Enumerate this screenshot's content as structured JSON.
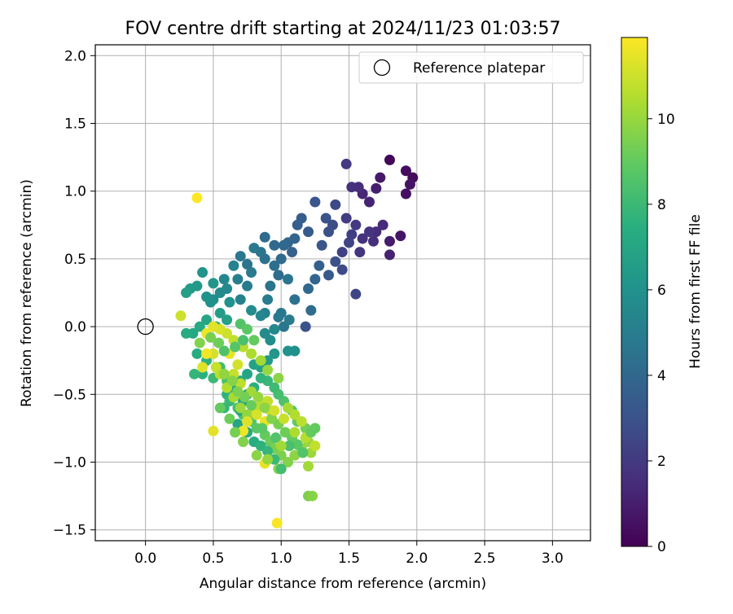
{
  "chart_data": {
    "type": "scatter",
    "title": "FOV centre drift starting at 2024/11/23 01:03:57",
    "xlabel": "Angular distance from reference (arcmin)",
    "ylabel": "Rotation from reference (arcmin)",
    "xlim": [
      -0.37,
      3.28
    ],
    "ylim": [
      -1.58,
      2.08
    ],
    "xticks": [
      "0.0",
      "0.5",
      "1.0",
      "1.5",
      "2.0",
      "2.5",
      "3.0"
    ],
    "yticks": [
      "−1.5",
      "−1.0",
      "−0.5",
      "0.0",
      "0.5",
      "1.0",
      "1.5",
      "2.0"
    ],
    "grid": true,
    "legend": {
      "placement": "top-right",
      "entries": [
        "Reference platepar"
      ]
    },
    "reference_point": {
      "x": 0.0,
      "y": 0.0,
      "label": "Reference platepar"
    },
    "colorbar": {
      "label": "Hours from first FF file",
      "range": [
        0,
        11.9
      ],
      "ticks": [
        "0",
        "2",
        "4",
        "6",
        "8",
        "10"
      ],
      "colormap": "viridis"
    },
    "points": [
      [
        1.8,
        1.23,
        0.2
      ],
      [
        1.92,
        1.15,
        0.4
      ],
      [
        1.97,
        1.1,
        0.3
      ],
      [
        1.95,
        1.05,
        0.6
      ],
      [
        1.92,
        0.98,
        0.5
      ],
      [
        1.73,
        1.1,
        0.8
      ],
      [
        1.7,
        1.02,
        1.0
      ],
      [
        1.65,
        0.92,
        1.2
      ],
      [
        1.6,
        0.98,
        1.3
      ],
      [
        1.57,
        1.03,
        1.5
      ],
      [
        1.52,
        1.03,
        1.7
      ],
      [
        1.48,
        1.2,
        2.0
      ],
      [
        1.8,
        0.63,
        0.9
      ],
      [
        1.88,
        0.67,
        0.7
      ],
      [
        1.8,
        0.53,
        1.1
      ],
      [
        1.75,
        0.75,
        1.4
      ],
      [
        1.7,
        0.7,
        1.5
      ],
      [
        1.68,
        0.63,
        1.6
      ],
      [
        1.65,
        0.7,
        1.8
      ],
      [
        1.6,
        0.65,
        1.7
      ],
      [
        1.58,
        0.55,
        1.9
      ],
      [
        1.55,
        0.75,
        2.0
      ],
      [
        1.52,
        0.68,
        2.2
      ],
      [
        1.5,
        0.62,
        2.4
      ],
      [
        1.48,
        0.8,
        2.1
      ],
      [
        1.45,
        0.55,
        2.3
      ],
      [
        1.4,
        0.9,
        2.6
      ],
      [
        1.38,
        0.75,
        2.8
      ],
      [
        1.35,
        0.7,
        2.9
      ],
      [
        1.33,
        0.8,
        3.0
      ],
      [
        1.3,
        0.6,
        3.2
      ],
      [
        1.25,
        0.92,
        3.1
      ],
      [
        1.2,
        0.7,
        3.4
      ],
      [
        1.15,
        0.8,
        3.5
      ],
      [
        1.12,
        0.75,
        3.6
      ],
      [
        1.1,
        0.65,
        3.8
      ],
      [
        1.08,
        0.55,
        3.7
      ],
      [
        1.05,
        0.62,
        3.9
      ],
      [
        1.02,
        0.6,
        4.0
      ],
      [
        1.0,
        0.5,
        4.1
      ],
      [
        0.98,
        0.38,
        4.2
      ],
      [
        0.95,
        0.45,
        4.3
      ],
      [
        0.92,
        0.3,
        4.5
      ],
      [
        0.88,
        0.5,
        4.4
      ],
      [
        0.85,
        0.55,
        4.6
      ],
      [
        0.8,
        0.58,
        4.8
      ],
      [
        0.78,
        0.4,
        4.9
      ],
      [
        0.75,
        0.3,
        5.0
      ],
      [
        0.7,
        0.2,
        5.2
      ],
      [
        0.68,
        0.35,
        5.1
      ],
      [
        0.65,
        0.45,
        5.3
      ],
      [
        0.6,
        0.28,
        5.5
      ],
      [
        0.55,
        0.25,
        5.6
      ],
      [
        0.5,
        0.2,
        5.8
      ],
      [
        0.48,
        0.18,
        5.9
      ],
      [
        0.45,
        0.22,
        6.0
      ],
      [
        0.42,
        0.4,
        6.1
      ],
      [
        0.38,
        0.3,
        6.3
      ],
      [
        0.33,
        0.28,
        6.4
      ],
      [
        0.3,
        0.25,
        6.6
      ],
      [
        0.5,
        0.32,
        6.2
      ],
      [
        0.55,
        0.1,
        6.5
      ],
      [
        0.6,
        0.05,
        6.7
      ],
      [
        0.52,
        0.0,
        6.9
      ],
      [
        0.45,
        0.05,
        7.0
      ],
      [
        0.4,
        0.0,
        7.2
      ],
      [
        0.35,
        -0.05,
        7.1
      ],
      [
        0.3,
        -0.05,
        7.3
      ],
      [
        0.38,
        -0.2,
        7.4
      ],
      [
        0.45,
        -0.25,
        7.6
      ],
      [
        0.42,
        -0.35,
        7.5
      ],
      [
        0.36,
        -0.35,
        7.8
      ],
      [
        0.5,
        -0.38,
        8.0
      ],
      [
        0.55,
        -0.3,
        8.2
      ],
      [
        0.6,
        -0.4,
        8.4
      ],
      [
        1.55,
        0.24,
        2.5
      ],
      [
        1.45,
        0.42,
        2.7
      ],
      [
        1.4,
        0.48,
        2.9
      ],
      [
        1.35,
        0.38,
        3.3
      ],
      [
        1.28,
        0.45,
        3.6
      ],
      [
        1.25,
        0.35,
        3.8
      ],
      [
        1.2,
        0.28,
        4.0
      ],
      [
        1.22,
        0.12,
        4.2
      ],
      [
        1.18,
        0.0,
        3.0
      ],
      [
        1.1,
        0.2,
        4.4
      ],
      [
        1.05,
        0.35,
        4.6
      ],
      [
        1.0,
        0.1,
        4.7
      ],
      [
        0.98,
        0.07,
        4.8
      ],
      [
        0.9,
        0.2,
        5.0
      ],
      [
        0.88,
        0.1,
        5.2
      ],
      [
        0.85,
        0.08,
        5.4
      ],
      [
        0.88,
        -0.05,
        5.6
      ],
      [
        0.92,
        -0.1,
        5.8
      ],
      [
        1.05,
        -0.18,
        6.0
      ],
      [
        1.1,
        -0.18,
        5.9
      ],
      [
        0.95,
        -0.2,
        6.2
      ],
      [
        0.9,
        -0.25,
        6.4
      ],
      [
        0.85,
        -0.3,
        6.6
      ],
      [
        0.8,
        -0.28,
        6.8
      ],
      [
        0.75,
        -0.35,
        7.0
      ],
      [
        0.7,
        -0.4,
        7.2
      ],
      [
        0.65,
        -0.45,
        7.4
      ],
      [
        0.6,
        -0.5,
        7.6
      ],
      [
        0.58,
        -0.6,
        7.8
      ],
      [
        0.62,
        -0.55,
        8.0
      ],
      [
        0.68,
        -0.6,
        8.2
      ],
      [
        0.72,
        -0.65,
        8.4
      ],
      [
        0.78,
        -0.7,
        8.6
      ],
      [
        0.82,
        -0.75,
        8.8
      ],
      [
        0.88,
        -0.8,
        9.0
      ],
      [
        0.92,
        -0.85,
        9.2
      ],
      [
        0.95,
        -0.9,
        9.4
      ],
      [
        1.0,
        -0.95,
        9.5
      ],
      [
        1.05,
        -1.0,
        9.6
      ],
      [
        0.98,
        -1.05,
        9.7
      ],
      [
        1.1,
        -0.95,
        9.8
      ],
      [
        1.15,
        -0.9,
        9.9
      ],
      [
        1.2,
        -0.85,
        10.0
      ],
      [
        1.22,
        -0.93,
        10.1
      ],
      [
        1.2,
        -1.03,
        10.2
      ],
      [
        1.18,
        -0.75,
        9.3
      ],
      [
        1.25,
        -0.75,
        9.0
      ],
      [
        1.12,
        -0.7,
        8.9
      ],
      [
        1.08,
        -0.62,
        8.7
      ],
      [
        1.02,
        -0.55,
        8.5
      ],
      [
        0.98,
        -0.5,
        8.3
      ],
      [
        0.95,
        -0.45,
        8.1
      ],
      [
        0.9,
        -0.4,
        7.9
      ],
      [
        0.85,
        -0.38,
        7.7
      ],
      [
        0.8,
        -0.45,
        7.5
      ],
      [
        0.75,
        -0.5,
        7.3
      ],
      [
        0.72,
        -0.55,
        7.1
      ],
      [
        0.7,
        -0.62,
        6.9
      ],
      [
        0.68,
        -0.72,
        7.0
      ],
      [
        0.75,
        -0.78,
        7.2
      ],
      [
        0.8,
        -0.85,
        7.4
      ],
      [
        0.85,
        -0.88,
        7.6
      ],
      [
        0.9,
        -0.92,
        7.8
      ],
      [
        0.95,
        -0.98,
        8.0
      ],
      [
        1.0,
        -1.05,
        8.2
      ],
      [
        0.98,
        -0.38,
        9.8
      ],
      [
        0.9,
        -0.32,
        10.0
      ],
      [
        0.85,
        -0.25,
        10.2
      ],
      [
        0.78,
        -0.2,
        10.4
      ],
      [
        0.72,
        -0.15,
        10.6
      ],
      [
        0.65,
        -0.1,
        10.8
      ],
      [
        0.6,
        -0.05,
        11.0
      ],
      [
        0.55,
        -0.02,
        11.2
      ],
      [
        0.5,
        0.0,
        11.4
      ],
      [
        0.45,
        -0.05,
        11.6
      ],
      [
        0.5,
        -0.2,
        11.1
      ],
      [
        0.52,
        -0.3,
        10.9
      ],
      [
        0.55,
        -0.35,
        10.7
      ],
      [
        0.6,
        -0.45,
        10.5
      ],
      [
        0.65,
        -0.52,
        10.3
      ],
      [
        0.7,
        -0.6,
        10.1
      ],
      [
        0.75,
        -0.65,
        9.9
      ],
      [
        0.8,
        -0.6,
        10.4
      ],
      [
        0.85,
        -0.58,
        10.6
      ],
      [
        0.9,
        -0.55,
        10.8
      ],
      [
        0.92,
        -0.62,
        11.0
      ],
      [
        0.88,
        -0.7,
        11.5
      ],
      [
        0.82,
        -0.65,
        11.2
      ],
      [
        0.75,
        -0.7,
        11.3
      ],
      [
        0.72,
        -0.77,
        11.6
      ],
      [
        0.5,
        -0.77,
        11.4
      ],
      [
        0.88,
        -1.01,
        11.5
      ],
      [
        0.97,
        -1.45,
        11.8
      ],
      [
        1.2,
        -1.25,
        9.5
      ],
      [
        1.23,
        -1.25,
        9.7
      ],
      [
        0.38,
        0.95,
        11.9
      ],
      [
        0.26,
        0.08,
        11.0
      ],
      [
        0.45,
        -0.2,
        11.7
      ],
      [
        0.42,
        -0.3,
        11.3
      ],
      [
        0.62,
        -0.2,
        11.5
      ],
      [
        0.68,
        -0.28,
        11.1
      ],
      [
        0.65,
        -0.35,
        10.9
      ],
      [
        0.7,
        -0.42,
        10.7
      ],
      [
        0.78,
        -0.48,
        10.2
      ],
      [
        0.83,
        -0.52,
        10.0
      ],
      [
        0.88,
        -0.6,
        9.8
      ],
      [
        0.93,
        -0.68,
        9.6
      ],
      [
        0.98,
        -0.72,
        9.4
      ],
      [
        1.03,
        -0.78,
        9.2
      ],
      [
        1.08,
        -0.82,
        9.0
      ],
      [
        1.12,
        -0.87,
        8.8
      ],
      [
        1.16,
        -0.93,
        8.6
      ],
      [
        1.06,
        -0.88,
        8.4
      ],
      [
        0.96,
        -0.82,
        8.6
      ],
      [
        0.86,
        -0.75,
        8.8
      ],
      [
        0.78,
        -0.58,
        9.1
      ],
      [
        0.73,
        -0.52,
        9.3
      ],
      [
        0.68,
        -0.48,
        9.5
      ],
      [
        0.64,
        -0.4,
        9.7
      ],
      [
        0.58,
        -0.35,
        9.9
      ],
      [
        1.05,
        -0.6,
        10.3
      ],
      [
        1.1,
        -0.65,
        10.5
      ],
      [
        1.15,
        -0.7,
        10.7
      ],
      [
        1.02,
        -0.68,
        10.9
      ],
      [
        0.95,
        -0.62,
        11.1
      ],
      [
        0.7,
        0.02,
        8.6
      ],
      [
        0.75,
        -0.02,
        8.8
      ],
      [
        0.8,
        -0.1,
        9.0
      ],
      [
        0.72,
        -0.1,
        8.4
      ],
      [
        0.66,
        -0.15,
        8.7
      ],
      [
        0.58,
        -0.18,
        8.5
      ],
      [
        0.54,
        -0.12,
        9.2
      ],
      [
        0.48,
        -0.08,
        9.4
      ],
      [
        0.4,
        -0.12,
        9.6
      ],
      [
        0.55,
        -0.6,
        9.0
      ],
      [
        0.62,
        -0.68,
        9.2
      ],
      [
        0.66,
        -0.78,
        9.4
      ],
      [
        0.72,
        -0.85,
        9.6
      ],
      [
        0.82,
        -0.95,
        9.8
      ],
      [
        0.9,
        -0.98,
        10.0
      ],
      [
        1.0,
        -0.88,
        10.2
      ],
      [
        1.1,
        -0.78,
        10.4
      ],
      [
        1.18,
        -0.82,
        10.6
      ],
      [
        1.25,
        -0.88,
        10.8
      ],
      [
        1.22,
        -0.78,
        9.0
      ],
      [
        1.02,
        0.0,
        4.6
      ],
      [
        1.06,
        0.05,
        4.9
      ],
      [
        0.95,
        -0.02,
        5.5
      ],
      [
        0.78,
        0.12,
        5.7
      ],
      [
        0.62,
        0.18,
        6.0
      ],
      [
        0.58,
        0.35,
        5.4
      ],
      [
        0.7,
        0.52,
        4.7
      ],
      [
        0.75,
        0.46,
        4.5
      ],
      [
        0.88,
        0.66,
        4.2
      ],
      [
        0.95,
        0.6,
        4.0
      ]
    ]
  }
}
